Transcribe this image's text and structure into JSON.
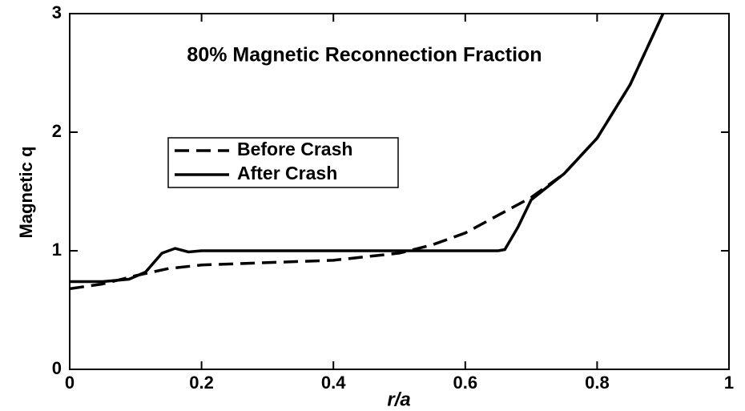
{
  "chart_data": {
    "type": "line",
    "title": "80% Magnetic Reconnection Fraction",
    "x_label": "r/a",
    "y_label": "Magnetic q",
    "xlim": [
      0,
      1
    ],
    "xticks": [
      0,
      0.2,
      0.4,
      0.6,
      0.8,
      1
    ],
    "ylim": [
      0,
      3
    ],
    "yticks": [
      0,
      1,
      2,
      3
    ],
    "legend": "upper left",
    "series": [
      {
        "name": "Before Crash",
        "color": "#000000",
        "dash": true,
        "x": [
          0,
          0.05,
          0.1,
          0.15,
          0.2,
          0.3,
          0.4,
          0.5,
          0.55,
          0.6,
          0.65,
          0.7,
          0.75,
          0.8,
          0.85,
          0.9
        ],
        "values": [
          0.68,
          0.72,
          0.79,
          0.85,
          0.88,
          0.9,
          0.92,
          0.98,
          1.05,
          1.15,
          1.3,
          1.45,
          1.65,
          1.95,
          2.4,
          3.0
        ]
      },
      {
        "name": "After Crash",
        "color": "#000000",
        "dash": false,
        "x": [
          0,
          0.05,
          0.09,
          0.115,
          0.14,
          0.16,
          0.18,
          0.2,
          0.65,
          0.66,
          0.68,
          0.7,
          0.75,
          0.8,
          0.85,
          0.9
        ],
        "values": [
          0.74,
          0.74,
          0.76,
          0.82,
          0.98,
          1.02,
          0.99,
          1.0,
          1.0,
          1.01,
          1.2,
          1.43,
          1.65,
          1.95,
          2.4,
          3.0
        ]
      }
    ]
  }
}
